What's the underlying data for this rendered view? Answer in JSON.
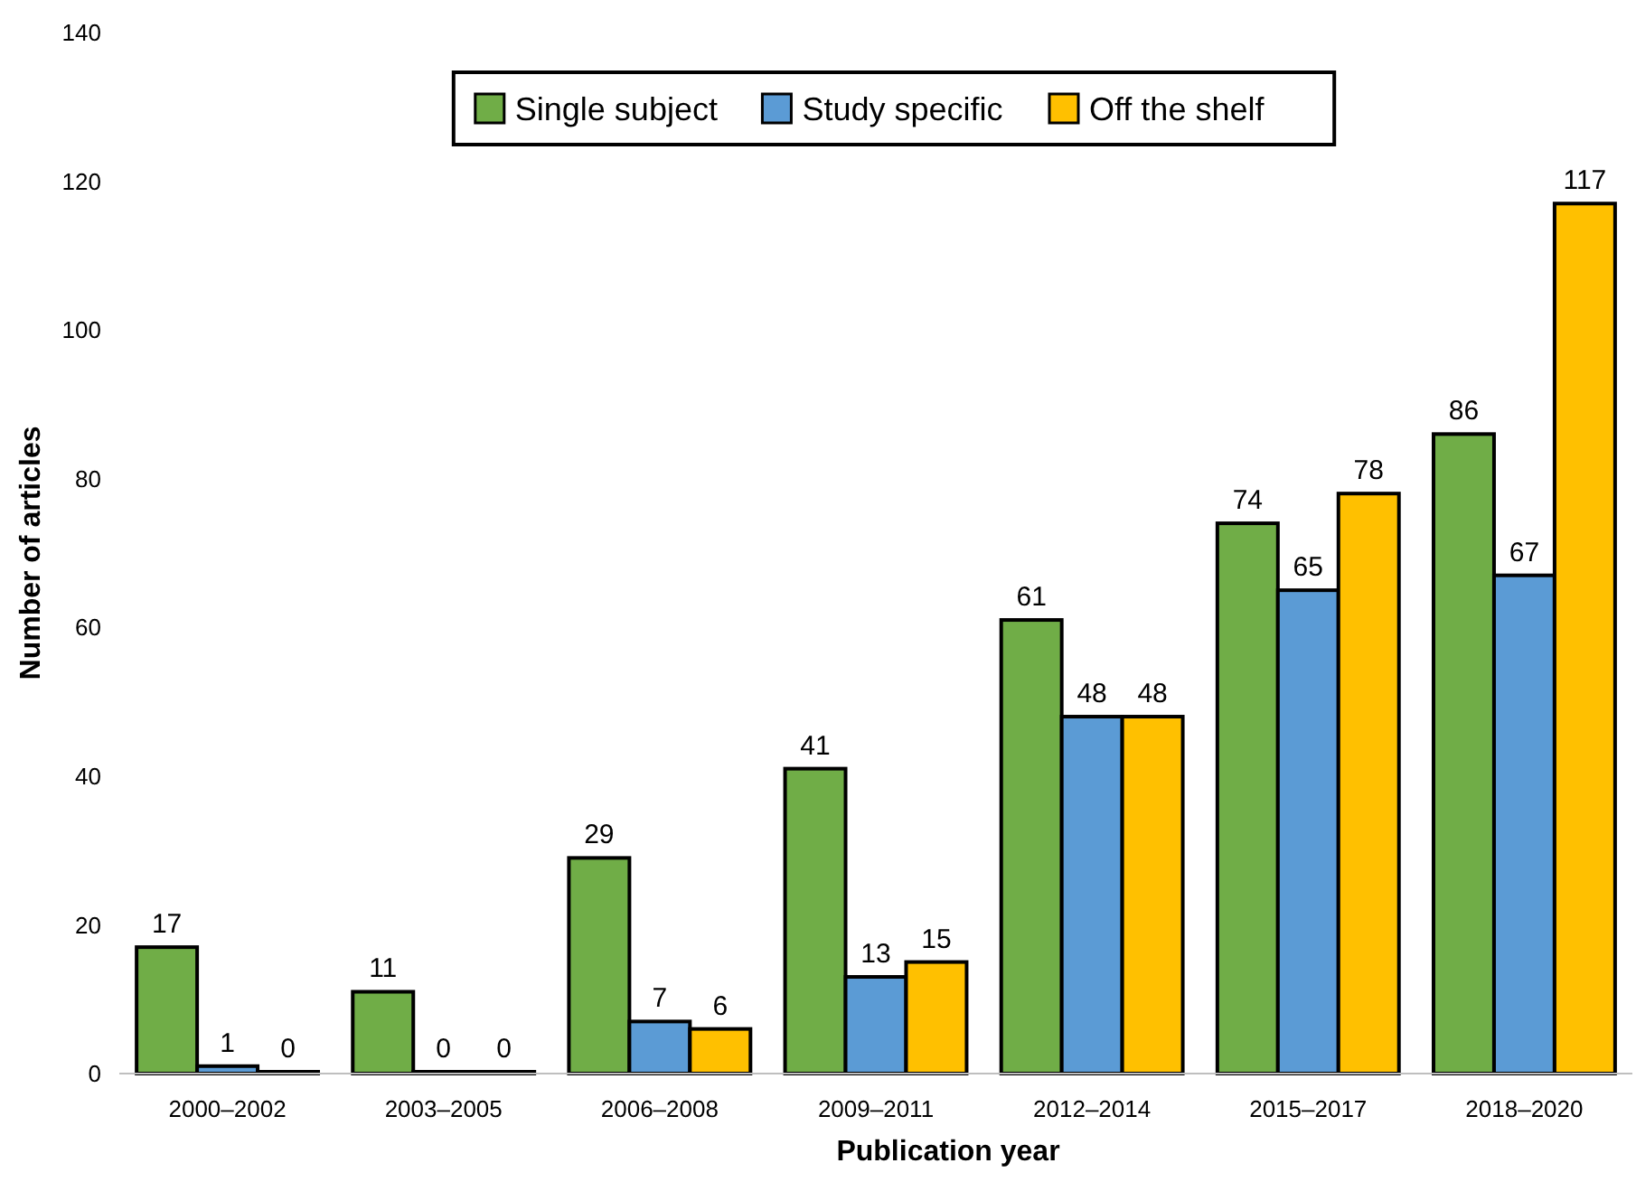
{
  "chart_data": {
    "type": "bar",
    "xlabel": "Publication year",
    "ylabel": "Number of articles",
    "categories": [
      "2000–2002",
      "2003–2005",
      "2006–2008",
      "2009–2011",
      "2012–2014",
      "2015–2017",
      "2018–2020"
    ],
    "series": [
      {
        "name": "Single subject",
        "color": "#70ad47",
        "values": [
          17,
          11,
          29,
          41,
          61,
          74,
          86
        ]
      },
      {
        "name": "Study specific",
        "color": "#5b9bd5",
        "values": [
          1,
          0,
          7,
          13,
          48,
          65,
          67
        ]
      },
      {
        "name": "Off the shelf",
        "color": "#ffc000",
        "values": [
          0,
          0,
          6,
          15,
          48,
          78,
          117
        ]
      }
    ],
    "ylim": [
      0,
      140
    ],
    "yticks": [
      0,
      20,
      40,
      60,
      80,
      100,
      120,
      140
    ],
    "data_labels": true,
    "legend": "top",
    "grid": false
  }
}
